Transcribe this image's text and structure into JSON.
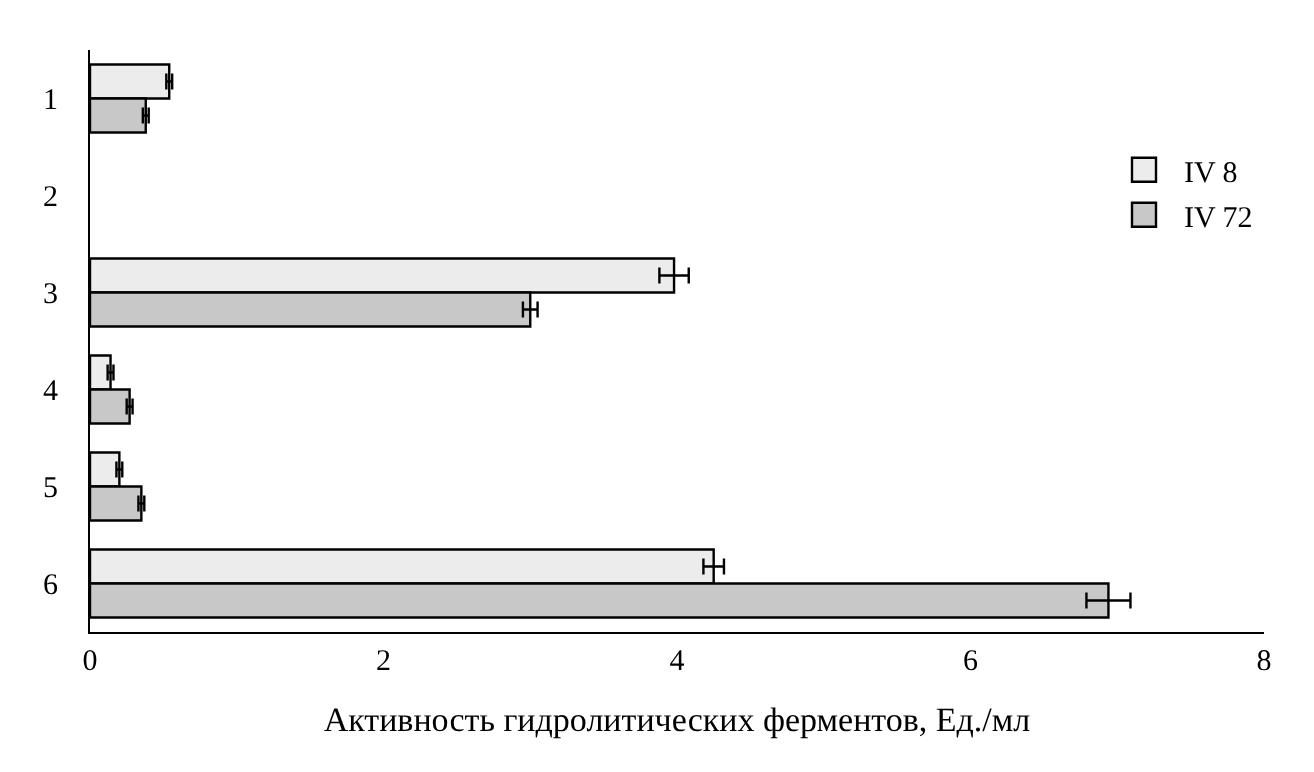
{
  "chart_data": {
    "type": "bar",
    "orientation": "horizontal",
    "xlabel": "Активность гидролитических ферментов, Ед./мл",
    "categories": [
      "1",
      "2",
      "3",
      "4",
      "5",
      "6"
    ],
    "xlim": [
      0,
      8
    ],
    "xticks": [
      0,
      2,
      4,
      6,
      8
    ],
    "legend": "top right",
    "series": [
      {
        "name": "IV 8",
        "color": "#ececec",
        "values": [
          0.54,
          null,
          3.98,
          0.14,
          0.2,
          4.25
        ],
        "errors": [
          0.02,
          null,
          0.1,
          0.02,
          0.02,
          0.07
        ]
      },
      {
        "name": "IV 72",
        "color": "#c8c8c8",
        "values": [
          0.38,
          null,
          3.0,
          0.27,
          0.35,
          6.94
        ],
        "errors": [
          0.02,
          null,
          0.05,
          0.02,
          0.02,
          0.15
        ]
      }
    ]
  }
}
